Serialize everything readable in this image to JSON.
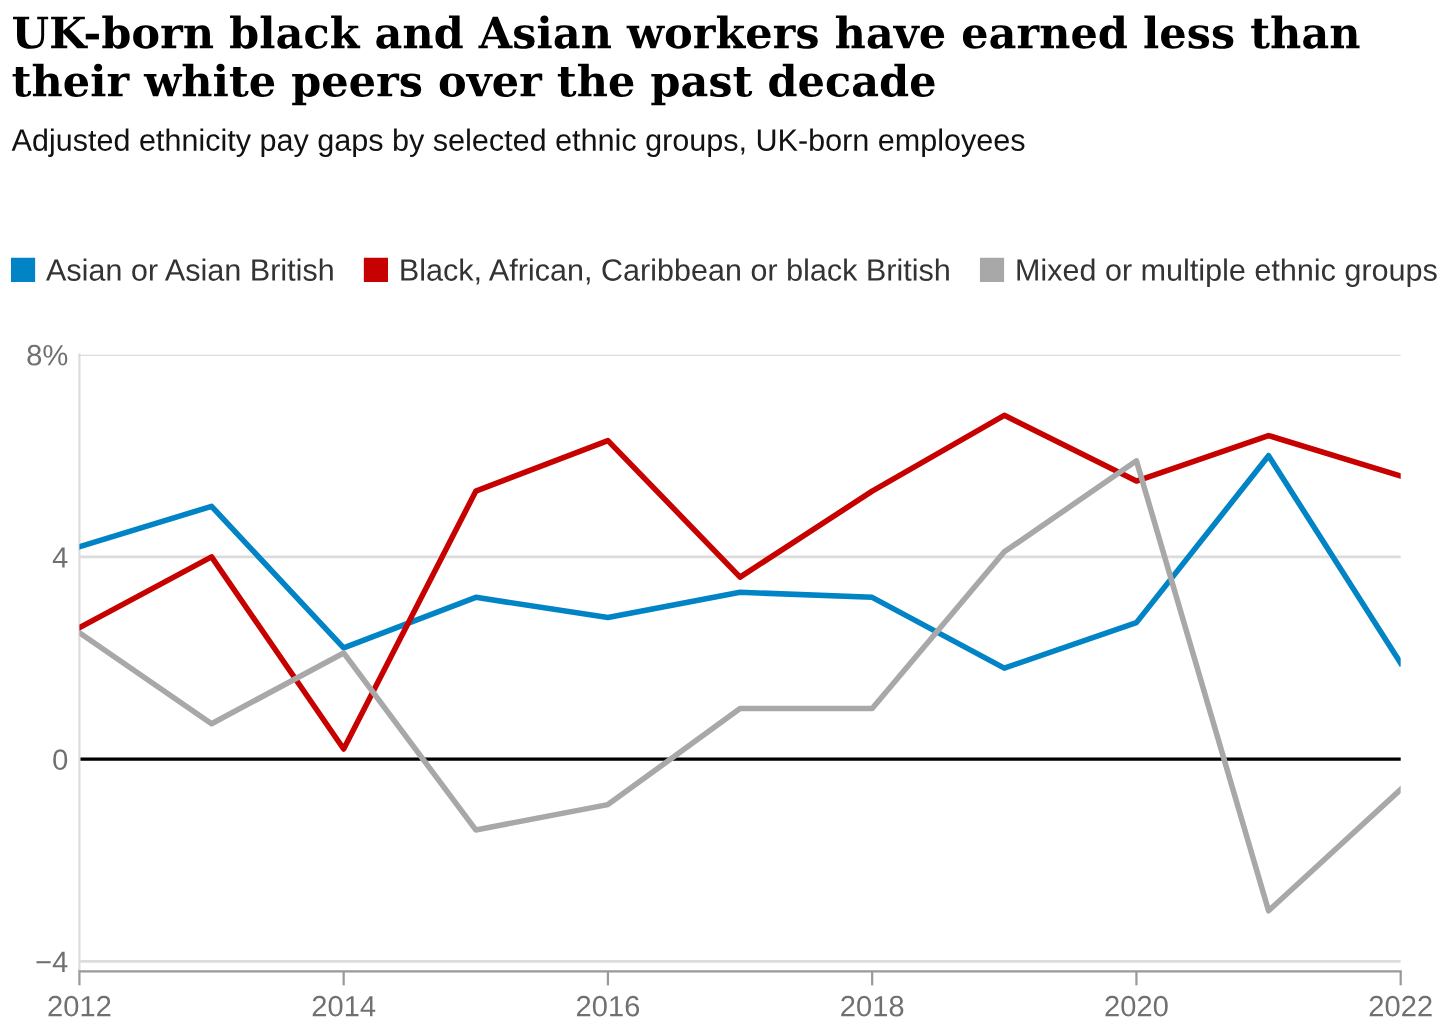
{
  "chart_data": {
    "type": "line",
    "title": "UK-born black and Asian workers have earned less than their white peers over the past decade",
    "subtitle": "Adjusted ethnicity pay gaps by selected ethnic groups, UK-born employees",
    "x": [
      2012,
      2013,
      2014,
      2015,
      2016,
      2017,
      2018,
      2019,
      2020,
      2021,
      2022
    ],
    "series": [
      {
        "name": "Asian or Asian British",
        "color": "#0084c6",
        "values": [
          4.2,
          5.0,
          2.2,
          3.2,
          2.8,
          3.3,
          3.2,
          1.8,
          2.7,
          6.0,
          1.9
        ]
      },
      {
        "name": "Black, African, Caribbean or black British",
        "color": "#c70000",
        "values": [
          2.6,
          4.0,
          0.2,
          5.3,
          6.3,
          3.6,
          5.3,
          6.8,
          5.5,
          6.4,
          5.6
        ]
      },
      {
        "name": "Mixed or multiple ethnic groups",
        "color": "#a8a8a8",
        "values": [
          2.5,
          0.7,
          2.1,
          -1.4,
          -0.9,
          1.0,
          1.0,
          4.1,
          5.9,
          -3.0,
          -0.6
        ]
      }
    ],
    "xlim": [
      2012,
      2022
    ],
    "xticks": [
      2012,
      2014,
      2016,
      2018,
      2020,
      2022
    ],
    "ylim": [
      -4.2,
      8
    ],
    "yticks": [
      {
        "value": 8,
        "label": "8%"
      },
      4,
      0,
      {
        "value": -4,
        "label": "−4"
      }
    ],
    "ref_lines": [
      {
        "axis": "y",
        "value": 0,
        "color": "#000000"
      }
    ],
    "grid": "y",
    "legend": "top",
    "marker": "none",
    "line_style": "solid"
  }
}
